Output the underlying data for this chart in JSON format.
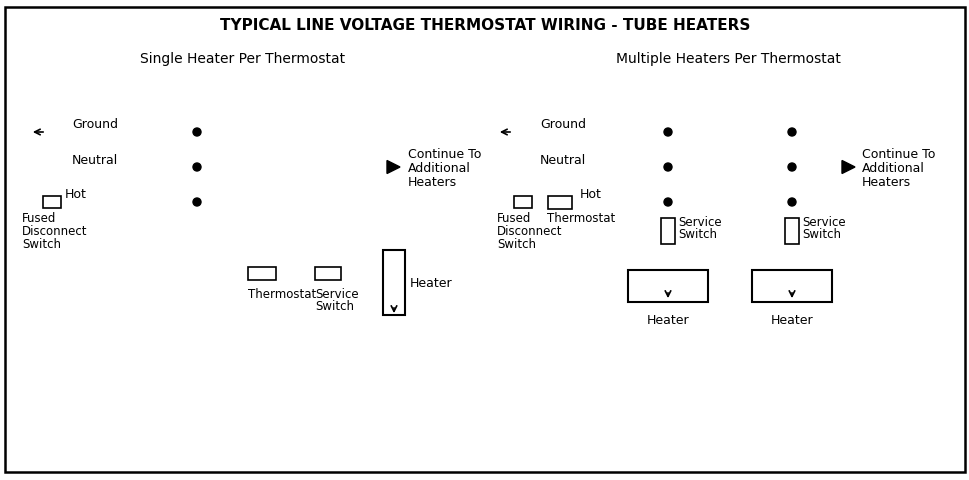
{
  "title": "TYPICAL LINE VOLTAGE THERMOSTAT WIRING - TUBE HEATERS",
  "left_subtitle": "Single Heater Per Thermostat",
  "right_subtitle": "Multiple Heaters Per Thermostat",
  "bg_color": "#ffffff",
  "line_color": "#000000",
  "figsize": [
    9.7,
    4.81
  ],
  "dpi": 100
}
